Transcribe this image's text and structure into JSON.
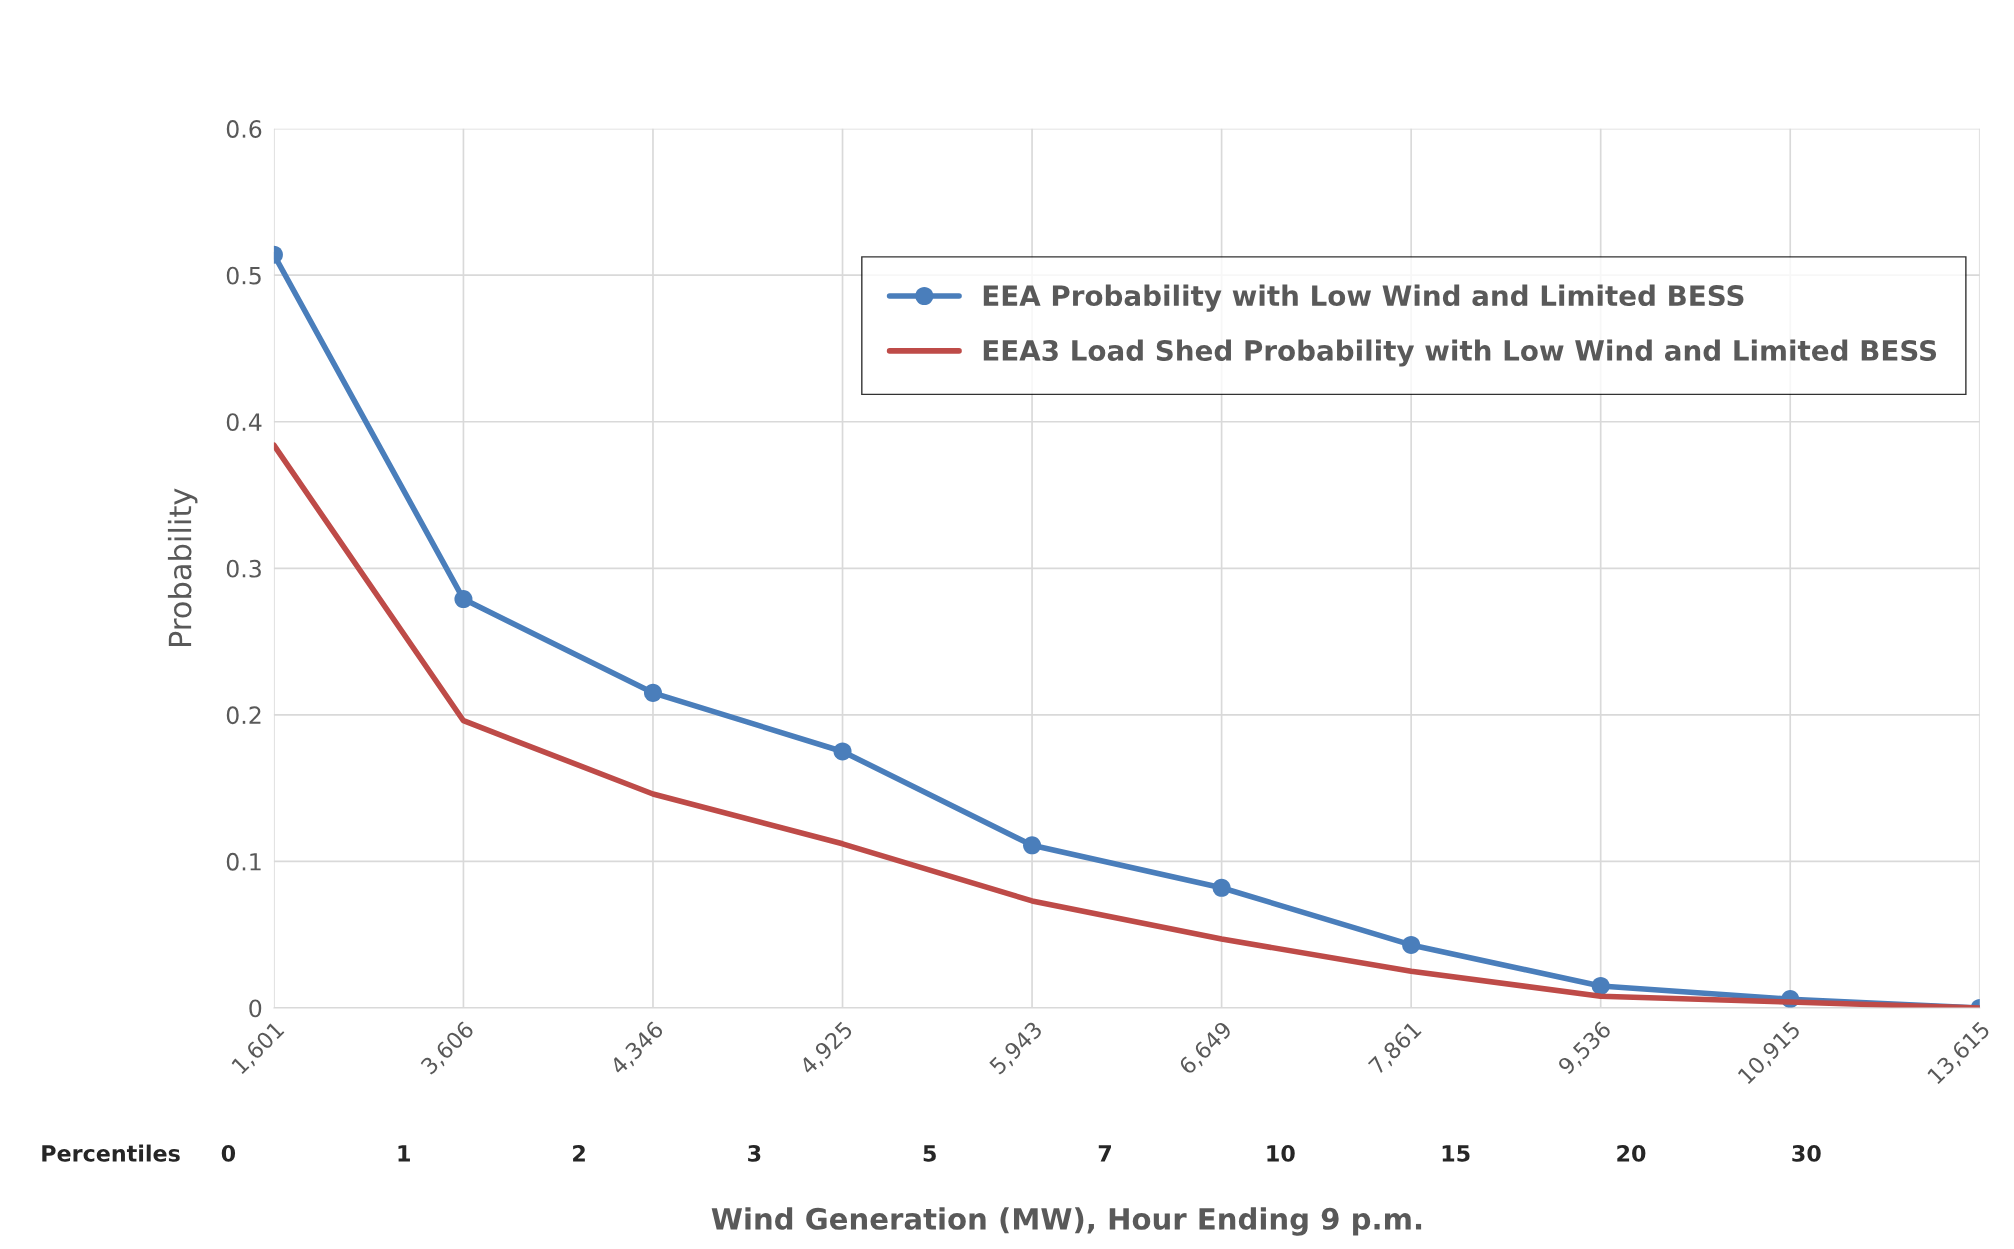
{
  "chart_data": {
    "type": "line",
    "xlabel": "Wind Generation (MW), Hour Ending 9 p.m.",
    "ylabel": "Probability",
    "categories": [
      "1,601",
      "3,606",
      "4,346",
      "4,925",
      "5,943",
      "6,649",
      "7,861",
      "9,536",
      "10,915",
      "13,615"
    ],
    "series": [
      {
        "name": "EEA Probability with Low Wind and Limited BESS",
        "color": "#4a7ebb",
        "marker": "circle",
        "values": [
          0.514,
          0.279,
          0.215,
          0.175,
          0.111,
          0.082,
          0.043,
          0.015,
          0.006,
          0.0
        ]
      },
      {
        "name": "EEA3 Load Shed Probability with Low Wind and Limited BESS",
        "color": "#be4b48",
        "marker": "none",
        "values": [
          0.384,
          0.196,
          0.146,
          0.112,
          0.073,
          0.047,
          0.025,
          0.008,
          0.004,
          0.0
        ]
      }
    ],
    "annotations": [
      "Percentiles",
      "0",
      "1",
      "2",
      "3",
      "5",
      "7",
      "10",
      "15",
      "20",
      "30"
    ],
    "ylim": [
      0,
      0.6
    ],
    "yticks": [
      0,
      0.1,
      0.2,
      0.3,
      0.4,
      0.5,
      0.6
    ],
    "grid": true,
    "legend": "top right"
  }
}
